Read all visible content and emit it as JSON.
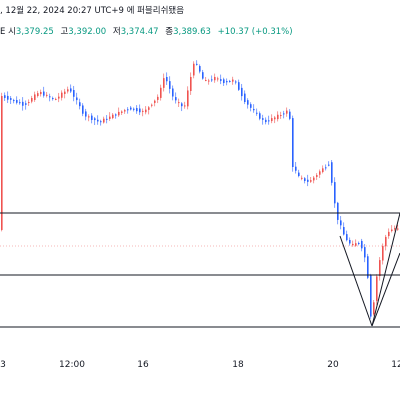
{
  "header": {
    "line1_prefix": ",",
    "date_text": "12월 22, 2024 20:27 UTC+9",
    "publisher_text": "에 퍼블리쉬됐음",
    "line2_prefix": "E",
    "open_label": "시",
    "open_value": "3,379.25",
    "high_label": "고",
    "high_value": "3,392.00",
    "low_label": "저",
    "low_value": "3,374.47",
    "close_label": "종",
    "close_value": "3,389.63",
    "change_value": "+10.37 (+0.31%)"
  },
  "x_axis": {
    "labels": [
      "3",
      "12:00",
      "16",
      "18",
      "20",
      "12"
    ]
  },
  "colors": {
    "up": "#ef5350",
    "down": "#2962ff",
    "line": "#131722",
    "change": "#089981",
    "price_line": "#f4a0a0"
  },
  "chart_data": {
    "type": "candlestick",
    "x_axis_labels": [
      "3",
      "12:00",
      "16",
      "18",
      "20",
      "12"
    ],
    "horizontal_levels": [
      "upper-support",
      "middle-support",
      "lower-support"
    ],
    "pattern": "V-shaped drawing (lines from the last low to the upper level)",
    "last_close": 3389.63
  }
}
